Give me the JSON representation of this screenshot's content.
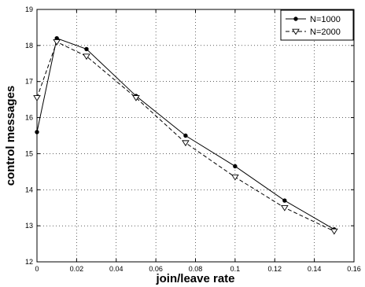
{
  "chart_data": {
    "type": "line",
    "xlabel": "join/leave rate",
    "ylabel": "control messages",
    "xlim": [
      0,
      0.16
    ],
    "ylim": [
      12,
      19
    ],
    "xticks": [
      0,
      0.02,
      0.04,
      0.06,
      0.08,
      0.1,
      0.12,
      0.14,
      0.16
    ],
    "xtick_labels": [
      "0",
      "0.02",
      "0.04",
      "0.06",
      "0.08",
      "0.1",
      "0.12",
      "0.14",
      "0.16"
    ],
    "yticks": [
      12,
      13,
      14,
      15,
      16,
      17,
      18,
      19
    ],
    "ytick_labels": [
      "12",
      "13",
      "14",
      "15",
      "16",
      "17",
      "18",
      "19"
    ],
    "grid": true,
    "legend_position": "top-right",
    "series": [
      {
        "name": "N=1000",
        "marker": "dot",
        "line_style": "solid",
        "x": [
          0,
          0.01,
          0.025,
          0.05,
          0.075,
          0.1,
          0.125,
          0.15
        ],
        "y": [
          15.6,
          18.2,
          17.9,
          16.6,
          15.5,
          14.65,
          13.7,
          12.9
        ]
      },
      {
        "name": "N=2000",
        "marker": "triangle-down",
        "line_style": "dashed",
        "x": [
          0,
          0.01,
          0.025,
          0.05,
          0.075,
          0.1,
          0.125,
          0.15
        ],
        "y": [
          16.55,
          18.1,
          17.7,
          16.55,
          15.3,
          14.35,
          13.5,
          12.85
        ]
      }
    ]
  }
}
